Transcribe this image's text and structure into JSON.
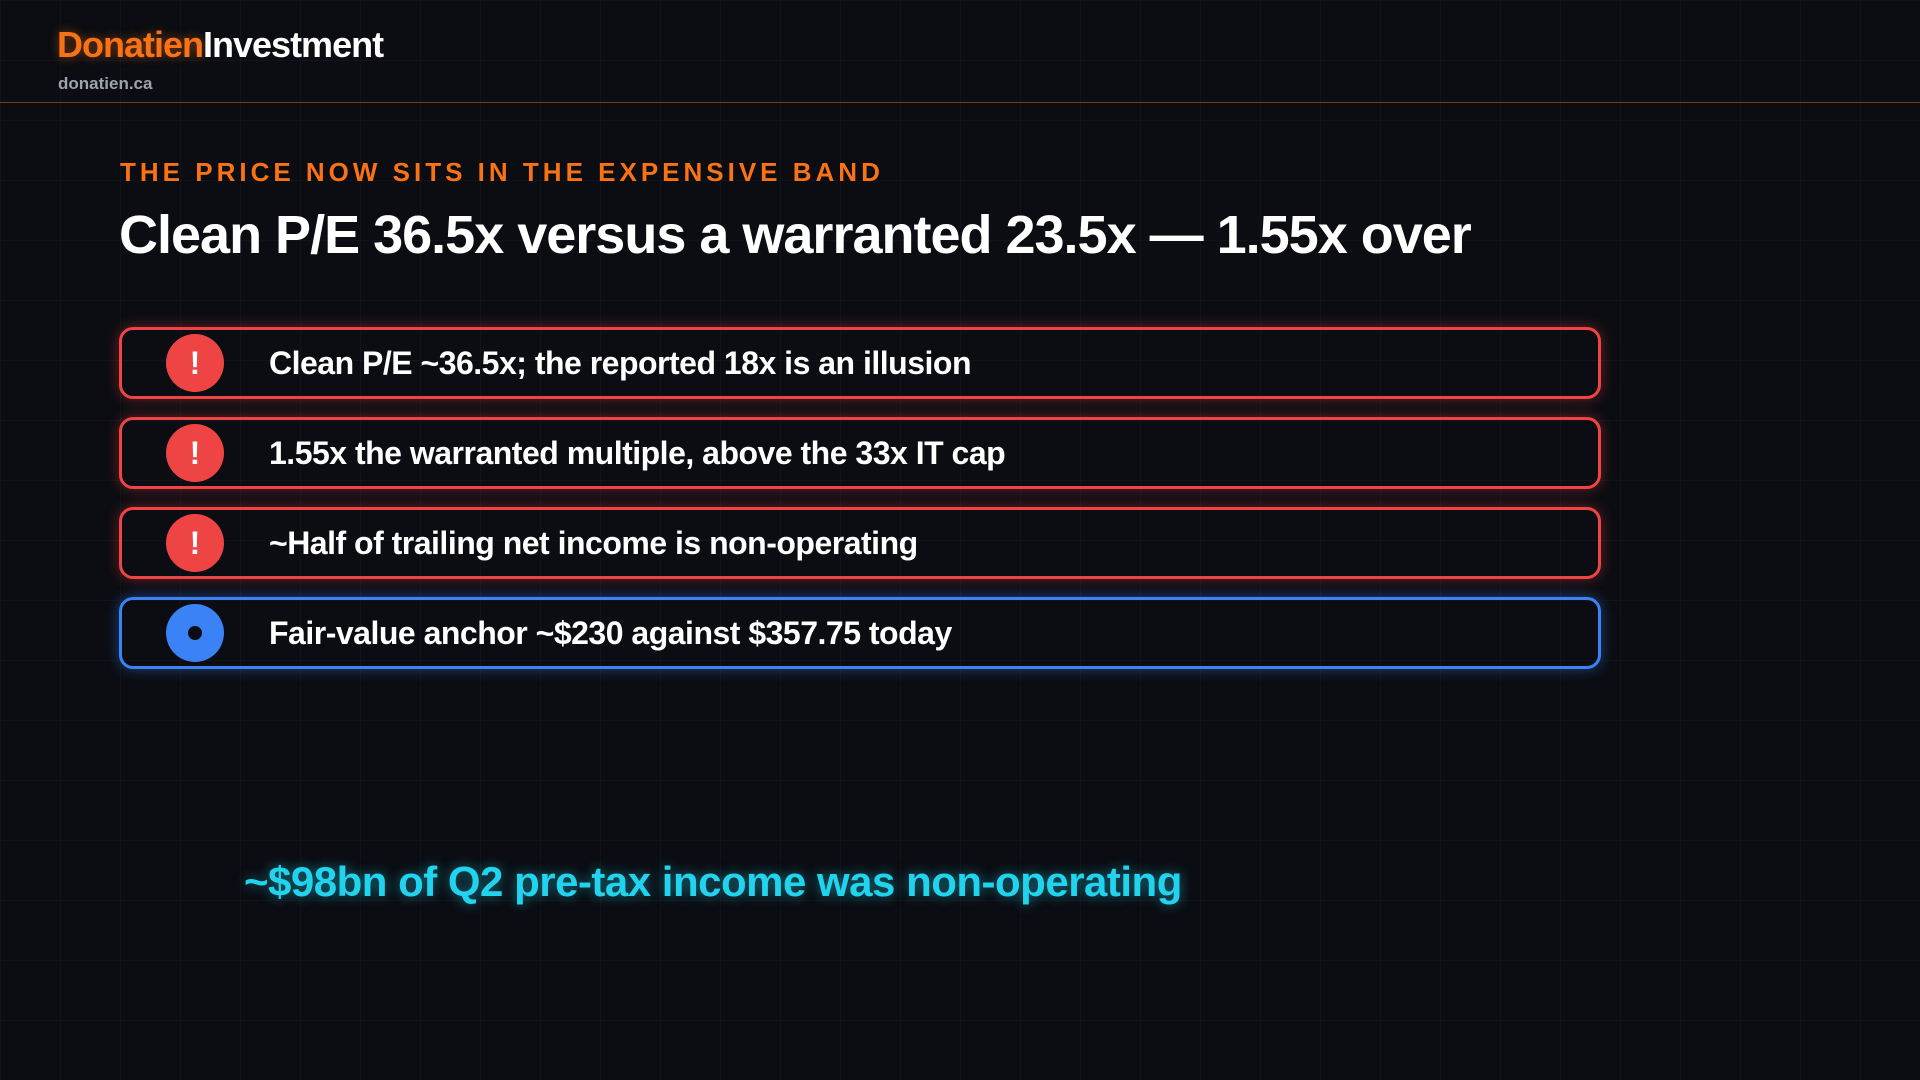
{
  "header": {
    "brand_accent": "Donatien",
    "brand_rest": "Investment",
    "site": "donatien.ca"
  },
  "eyebrow": "THE PRICE NOW SITS IN THE EXPENSIVE BAND",
  "title": "Clean P/E 36.5x versus a warranted 23.5x — 1.55x over",
  "items": [
    {
      "kind": "alert",
      "icon": "!",
      "text": "Clean P/E ~36.5x; the reported 18x is an illusion"
    },
    {
      "kind": "alert",
      "icon": "!",
      "text": "1.55x the warranted multiple, above the 33x IT cap"
    },
    {
      "kind": "alert",
      "icon": "!",
      "text": "~Half of trailing net income is non-operating"
    },
    {
      "kind": "info",
      "text": "Fair-value anchor ~$230 against $357.75 today"
    }
  ],
  "callout": "~$98bn of Q2 pre-tax income was non-operating"
}
